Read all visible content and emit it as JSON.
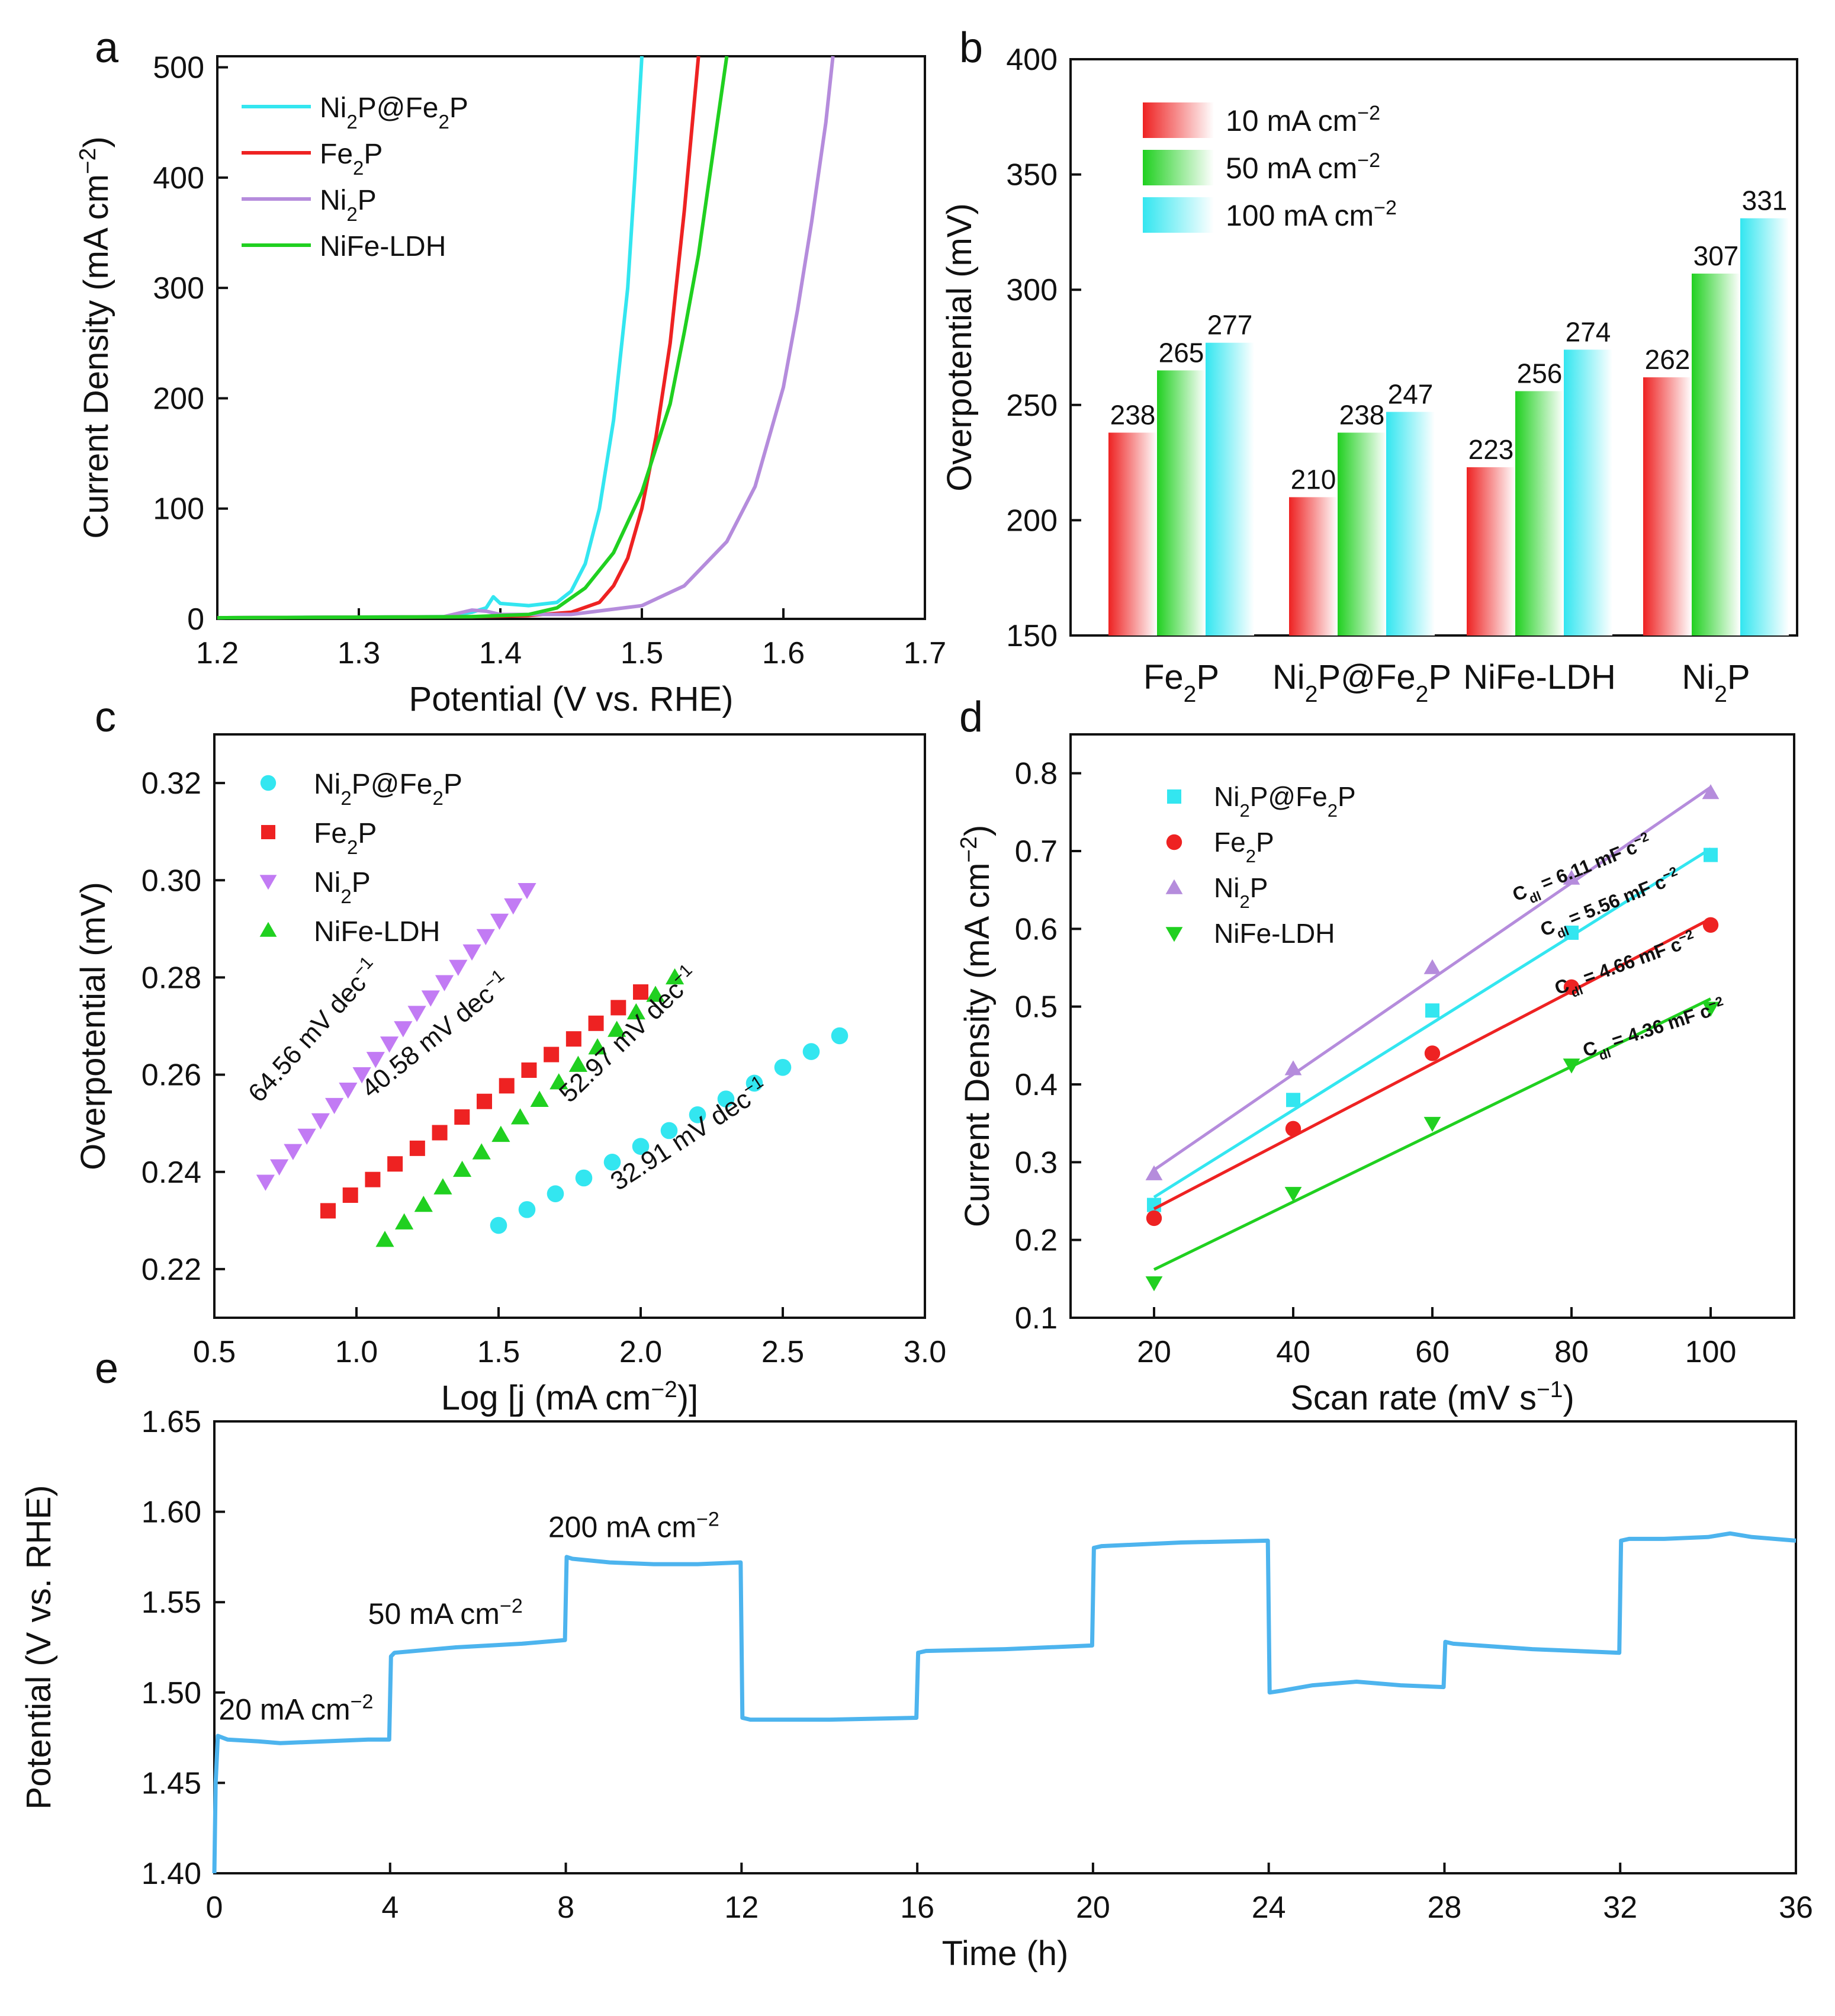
{
  "colors": {
    "cyan": "#33E6F0",
    "red": "#EE2222",
    "purple": "#C27BF4",
    "violet": "#B58CDC",
    "green": "#20D020",
    "blue_line": "#4DB4EE"
  },
  "chart_data": [
    {
      "panel": "a",
      "type": "line",
      "xlabel": "Potential (V vs. RHE)",
      "ylabel": "Current Density (mA cm−2)",
      "xlim": [
        1.2,
        1.7
      ],
      "ylim": [
        0,
        510
      ],
      "xticks": [
        1.2,
        1.3,
        1.4,
        1.5,
        1.6,
        1.7
      ],
      "yticks": [
        0,
        100,
        200,
        300,
        400,
        500
      ],
      "tick_labels_x": [
        "1.2",
        "1.3",
        "1.4",
        "1.5",
        "1.6",
        "1.7"
      ],
      "tick_labels_y": [
        "0",
        "100",
        "200",
        "300",
        "400",
        "500"
      ],
      "legend": [
        "Ni2P@Fe2P",
        "Fe2P",
        "Ni2P",
        "NiFe-LDH"
      ],
      "legend_position": "top-left",
      "series": [
        {
          "name": "Ni2P@Fe2P",
          "color_key": "cyan",
          "x": [
            1.2,
            1.36,
            1.38,
            1.39,
            1.395,
            1.4,
            1.42,
            1.44,
            1.45,
            1.46,
            1.47,
            1.48,
            1.49,
            1.495,
            1.5
          ],
          "y": [
            1,
            2,
            6,
            10,
            20,
            14,
            12,
            15,
            25,
            50,
            100,
            180,
            300,
            400,
            510
          ]
        },
        {
          "name": "Fe2P",
          "color_key": "red",
          "x": [
            1.2,
            1.38,
            1.42,
            1.45,
            1.47,
            1.48,
            1.49,
            1.5,
            1.51,
            1.52,
            1.53,
            1.54
          ],
          "y": [
            1,
            2,
            3,
            6,
            15,
            30,
            55,
            100,
            165,
            250,
            370,
            510
          ]
        },
        {
          "name": "Ni2P",
          "color_key": "violet",
          "x": [
            1.2,
            1.36,
            1.37,
            1.38,
            1.39,
            1.4,
            1.45,
            1.5,
            1.53,
            1.56,
            1.58,
            1.6,
            1.61,
            1.62,
            1.63,
            1.635
          ],
          "y": [
            1,
            2,
            5,
            8,
            7,
            4,
            4,
            12,
            30,
            70,
            120,
            210,
            280,
            360,
            450,
            510
          ]
        },
        {
          "name": "NiFe-LDH",
          "color_key": "green",
          "x": [
            1.2,
            1.38,
            1.42,
            1.44,
            1.46,
            1.48,
            1.5,
            1.52,
            1.53,
            1.54,
            1.55,
            1.56
          ],
          "y": [
            1,
            2,
            4,
            10,
            28,
            60,
            115,
            195,
            260,
            330,
            420,
            510
          ]
        }
      ]
    },
    {
      "panel": "b",
      "type": "bar",
      "ylabel": "Overpotential (mV)",
      "ylim": [
        150,
        400
      ],
      "yticks": [
        150,
        200,
        250,
        300,
        350,
        400
      ],
      "tick_labels_y": [
        "150",
        "200",
        "250",
        "300",
        "350",
        "400"
      ],
      "categories": [
        "Fe2P",
        "Ni2P@Fe2P",
        "NiFe-LDH",
        "Ni2P"
      ],
      "legend_position": "top-left",
      "series": [
        {
          "name": "10 mA cm−2",
          "color_key": "red",
          "values": [
            238,
            210,
            223,
            262
          ]
        },
        {
          "name": "50 mA cm−2",
          "color_key": "green",
          "values": [
            265,
            238,
            256,
            307
          ]
        },
        {
          "name": "100 mA cm−2",
          "color_key": "cyan",
          "values": [
            277,
            247,
            274,
            331
          ]
        }
      ]
    },
    {
      "panel": "c",
      "type": "scatter",
      "xlabel": "Log [j (mA cm−2)]",
      "ylabel": "Overpotential (mV)",
      "xlim": [
        0.5,
        3.0
      ],
      "ylim": [
        0.21,
        0.33
      ],
      "xticks": [
        0.5,
        1.0,
        1.5,
        2.0,
        2.5,
        3.0
      ],
      "yticks": [
        0.22,
        0.24,
        0.26,
        0.28,
        0.3,
        0.32
      ],
      "tick_labels_x": [
        "0.5",
        "1.0",
        "1.5",
        "2.0",
        "2.5",
        "3.0"
      ],
      "tick_labels_y": [
        "0.22",
        "0.24",
        "0.26",
        "0.28",
        "0.30",
        "0.32"
      ],
      "legend_position": "top-left",
      "series": [
        {
          "name": "Ni2P@Fe2P",
          "color_key": "cyan",
          "marker": "circle",
          "x_start": 1.5,
          "x_end": 2.7,
          "y_start": 0.229,
          "y_end": 0.268,
          "count": 13
        },
        {
          "name": "Fe2P",
          "color_key": "red",
          "marker": "square",
          "x_start": 0.9,
          "x_end": 2.0,
          "y_start": 0.232,
          "y_end": 0.277,
          "count": 15
        },
        {
          "name": "Ni2P",
          "color_key": "purple",
          "marker": "triangle-down",
          "x_start": 0.68,
          "x_end": 1.6,
          "y_start": 0.238,
          "y_end": 0.298,
          "count": 20
        },
        {
          "name": "NiFe-LDH",
          "color_key": "green",
          "marker": "triangle-up",
          "x_start": 1.1,
          "x_end": 2.12,
          "y_start": 0.226,
          "y_end": 0.28,
          "count": 16
        }
      ],
      "annotations": [
        {
          "text": "64.56 mV dec−1",
          "x": 0.66,
          "y": 0.254,
          "angle": -48
        },
        {
          "text": "40.58 mV dec−1",
          "x": 1.05,
          "y": 0.255,
          "angle": -39
        },
        {
          "text": "52.97 mV dec−1",
          "x": 1.75,
          "y": 0.254,
          "angle": -44
        },
        {
          "text": "32.91 mV dec−1",
          "x": 1.92,
          "y": 0.236,
          "angle": -33
        }
      ]
    },
    {
      "panel": "d",
      "type": "scatter",
      "xlabel": "Scan rate (mV s−1)",
      "ylabel": "Current Density (mA cm−2)",
      "xlim": [
        8,
        112
      ],
      "ylim": [
        0.1,
        0.85
      ],
      "xticks": [
        20,
        40,
        60,
        80,
        100
      ],
      "yticks": [
        0.1,
        0.2,
        0.3,
        0.4,
        0.5,
        0.6,
        0.7,
        0.8
      ],
      "tick_labels_x": [
        "20",
        "40",
        "60",
        "80",
        "100"
      ],
      "tick_labels_y": [
        "0.1",
        "0.2",
        "0.3",
        "0.4",
        "0.5",
        "0.6",
        "0.7",
        "0.8"
      ],
      "legend_position": "top-left",
      "series": [
        {
          "name": "Ni2P@Fe2P",
          "color_key": "cyan",
          "marker": "square",
          "x": [
            20,
            40,
            60,
            80,
            100
          ],
          "y": [
            0.245,
            0.38,
            0.495,
            0.595,
            0.695
          ],
          "fit": [
            0.255,
            0.703
          ]
        },
        {
          "name": "Fe2P",
          "color_key": "red",
          "marker": "circle",
          "x": [
            20,
            40,
            60,
            80,
            100
          ],
          "y": [
            0.228,
            0.343,
            0.44,
            0.525,
            0.605
          ],
          "fit": [
            0.24,
            0.613
          ]
        },
        {
          "name": "Ni2P",
          "color_key": "violet",
          "marker": "triangle-up",
          "x": [
            20,
            40,
            60,
            80,
            100
          ],
          "y": [
            0.285,
            0.42,
            0.55,
            0.665,
            0.775
          ],
          "fit": [
            0.29,
            0.782
          ]
        },
        {
          "name": "NiFe-LDH",
          "color_key": "green",
          "marker": "triangle-down",
          "x": [
            20,
            40,
            60,
            80,
            100
          ],
          "y": [
            0.145,
            0.26,
            0.35,
            0.425,
            0.498
          ],
          "fit": [
            0.162,
            0.51
          ]
        }
      ],
      "annotations": [
        {
          "text": "Cdl = 6.11 mF c−2",
          "x": 72,
          "y": 0.635,
          "angle": -22
        },
        {
          "text": "Cdl = 5.56 mF c−2",
          "x": 76,
          "y": 0.59,
          "angle": -22
        },
        {
          "text": "Cdl = 4.66 mF c−2",
          "x": 78,
          "y": 0.515,
          "angle": -20
        },
        {
          "text": "Cdl = 4.36 mF c−2",
          "x": 82,
          "y": 0.435,
          "angle": -18
        }
      ]
    },
    {
      "panel": "e",
      "type": "line",
      "xlabel": "Time (h)",
      "ylabel": "Potential (V vs. RHE)",
      "xlim": [
        0,
        36
      ],
      "ylim": [
        1.4,
        1.65
      ],
      "xticks": [
        0,
        4,
        8,
        12,
        16,
        20,
        24,
        28,
        32,
        36
      ],
      "yticks": [
        1.4,
        1.45,
        1.5,
        1.55,
        1.6,
        1.65
      ],
      "tick_labels_x": [
        "0",
        "4",
        "8",
        "12",
        "16",
        "20",
        "24",
        "28",
        "32",
        "36"
      ],
      "tick_labels_y": [
        "1.40",
        "1.45",
        "1.50",
        "1.55",
        "1.60",
        "1.65"
      ],
      "series": [
        {
          "name": "potential",
          "color_key": "blue_line",
          "x": [
            0,
            0.03,
            0.08,
            0.3,
            1.0,
            1.5,
            2.5,
            3.5,
            3.98,
            4.02,
            4.1,
            5.5,
            7.0,
            7.98,
            8.02,
            8.15,
            9,
            10,
            11,
            11.98,
            12.02,
            12.2,
            14,
            15.98,
            16.02,
            16.2,
            18,
            19.98,
            20.02,
            20.2,
            22,
            23.98,
            24.02,
            24.3,
            25,
            26,
            27,
            27.98,
            28.02,
            28.2,
            30,
            31.98,
            32.02,
            32.2,
            33,
            34,
            34.5,
            35,
            36
          ],
          "y": [
            1.4,
            1.45,
            1.476,
            1.474,
            1.473,
            1.472,
            1.473,
            1.474,
            1.474,
            1.52,
            1.522,
            1.525,
            1.527,
            1.529,
            1.575,
            1.574,
            1.572,
            1.571,
            1.571,
            1.572,
            1.486,
            1.485,
            1.485,
            1.486,
            1.522,
            1.523,
            1.524,
            1.526,
            1.58,
            1.581,
            1.583,
            1.584,
            1.5,
            1.501,
            1.504,
            1.506,
            1.504,
            1.503,
            1.528,
            1.527,
            1.524,
            1.522,
            1.584,
            1.585,
            1.585,
            1.586,
            1.588,
            1.586,
            1.584
          ]
        }
      ],
      "annotations": [
        {
          "text": "20 mA cm−2",
          "x": 0.1,
          "y": 1.485
        },
        {
          "text": "50 mA cm−2",
          "x": 3.5,
          "y": 1.538
        },
        {
          "text": "200 mA cm−2",
          "x": 7.6,
          "y": 1.586
        }
      ]
    }
  ],
  "panel_labels": [
    "a",
    "b",
    "c",
    "d",
    "e"
  ]
}
